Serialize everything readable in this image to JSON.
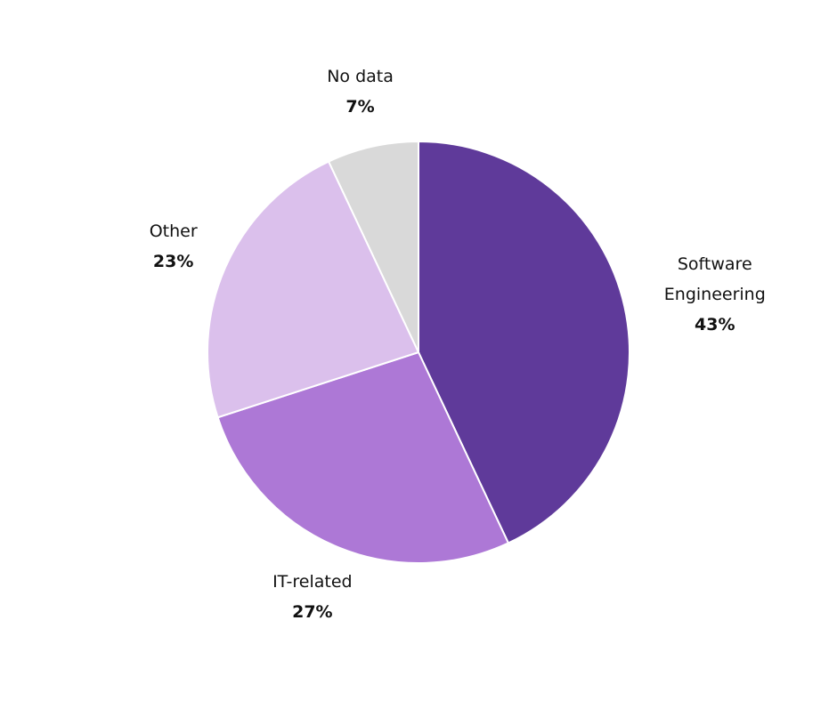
{
  "chart_data": {
    "type": "pie",
    "categories": [
      "Software Engineering",
      "IT-related",
      "Other",
      "No data"
    ],
    "values": [
      43,
      27,
      23,
      7
    ],
    "value_labels": [
      "43%",
      "27%",
      "23%",
      "7%"
    ],
    "colors": [
      "#5f3a9a",
      "#ad78d6",
      "#dbc0ec",
      "#d9d9d9"
    ]
  }
}
